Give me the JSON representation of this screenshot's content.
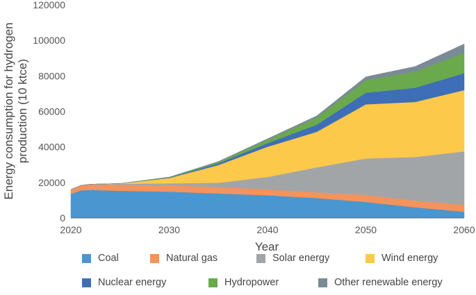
{
  "chart_data": {
    "type": "area",
    "stacked": true,
    "title": "",
    "xlabel": "Year",
    "ylabel": "Energy consumption for hydrogen production (10 ktce)",
    "xlim": [
      2020,
      2060
    ],
    "ylim": [
      0,
      120000
    ],
    "x_ticks": [
      "2020",
      "2030",
      "2040",
      "2050",
      "2060"
    ],
    "y_ticks": [
      "0",
      "20000",
      "40000",
      "60000",
      "80000",
      "100000",
      "120000"
    ],
    "grid": false,
    "legend_position": "bottom",
    "x": [
      2020,
      2021,
      2022,
      2025,
      2030,
      2035,
      2040,
      2045,
      2050,
      2055,
      2060
    ],
    "series": [
      {
        "name": "Coal",
        "color": "#4a96d0",
        "values": [
          13500,
          15500,
          15800,
          15300,
          14800,
          13800,
          12800,
          11200,
          9000,
          6000,
          3500
        ]
      },
      {
        "name": "Natural gas",
        "color": "#f4935c",
        "values": [
          2500,
          2800,
          3200,
          3400,
          3700,
          3500,
          3300,
          3300,
          4000,
          3800,
          4000
        ]
      },
      {
        "name": "Solar energy",
        "color": "#a2a5a7",
        "values": [
          0,
          0,
          0,
          500,
          1000,
          2500,
          7000,
          14000,
          20500,
          24500,
          30000
        ]
      },
      {
        "name": "Wind energy",
        "color": "#fdc94b",
        "values": [
          0,
          0,
          0,
          200,
          3000,
          10000,
          17000,
          20000,
          30500,
          31000,
          34500
        ]
      },
      {
        "name": "Nuclear energy",
        "color": "#3e6eb8",
        "values": [
          0,
          0,
          0,
          0,
          300,
          1000,
          2000,
          4000,
          6500,
          8000,
          9500
        ]
      },
      {
        "name": "Hydropower",
        "color": "#6aa94c",
        "values": [
          0,
          0,
          0,
          0,
          200,
          700,
          2000,
          4000,
          7000,
          9000,
          11500
        ]
      },
      {
        "name": "Other renewable energy",
        "color": "#7b8b95",
        "values": [
          0,
          0,
          0,
          0,
          0,
          300,
          500,
          1000,
          2000,
          3000,
          5000
        ]
      }
    ]
  }
}
